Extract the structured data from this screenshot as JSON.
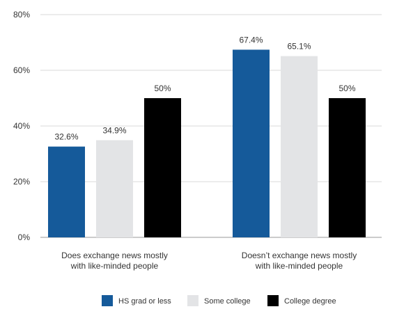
{
  "chart_data": {
    "type": "bar",
    "categories": [
      [
        "Does exchange news mostly",
        "with like-minded people"
      ],
      [
        "Doesn’t exchange news mostly",
        "with like-minded people"
      ]
    ],
    "series": [
      {
        "name": "HS grad or less",
        "color": "#155a9a",
        "values": [
          32.6,
          67.4
        ],
        "labels": [
          "32.6%",
          "67.4%"
        ]
      },
      {
        "name": "Some college",
        "color": "#e3e4e6",
        "values": [
          34.9,
          65.1
        ],
        "labels": [
          "34.9%",
          "65.1%"
        ]
      },
      {
        "name": "College degree",
        "color": "#000000",
        "values": [
          50,
          50
        ],
        "labels": [
          "50%",
          "50%"
        ]
      }
    ],
    "ylim": [
      0,
      80
    ],
    "yticks": [
      0,
      20,
      40,
      60,
      80
    ],
    "ytick_labels": [
      "0%",
      "20%",
      "40%",
      "60%",
      "80%"
    ],
    "grid": true,
    "legend": "bottom-center",
    "title": "",
    "xlabel": "",
    "ylabel": ""
  }
}
